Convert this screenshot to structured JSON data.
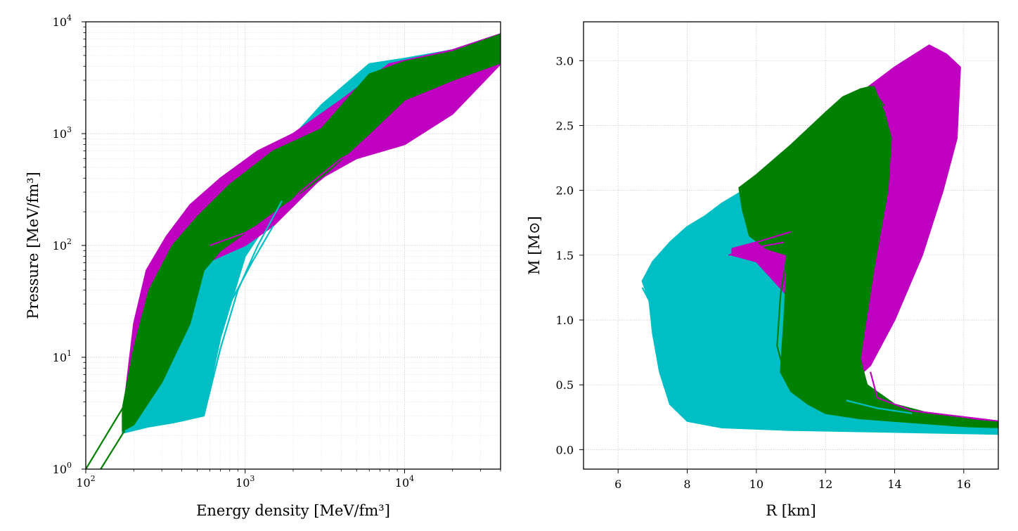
{
  "chart_data": [
    {
      "type": "line",
      "title": "",
      "xlabel": "Energy density [MeV/fm³]",
      "ylabel": "Pressure [MeV/fm³]",
      "xscale": "log",
      "yscale": "log",
      "xlim": [
        100,
        40000
      ],
      "ylim": [
        1,
        10000
      ],
      "x_ticks": [
        {
          "value": 100,
          "exp": "2"
        },
        {
          "value": 1000,
          "exp": "3"
        },
        {
          "value": 10000,
          "exp": "4"
        }
      ],
      "y_ticks": [
        {
          "value": 1,
          "exp": "0"
        },
        {
          "value": 10,
          "exp": "1"
        },
        {
          "value": 100,
          "exp": "2"
        },
        {
          "value": 1000,
          "exp": "3"
        },
        {
          "value": 10000,
          "exp": "4"
        }
      ],
      "tick_base": "10",
      "grid": "major and minor, dotted",
      "colors": {
        "cyan": "#00bfc4",
        "magenta": "#c000c0",
        "green": "#008000"
      },
      "bands": [
        {
          "color": "cyan",
          "upper": [
            [
              170,
              2.2
            ],
            [
              190,
              5
            ],
            [
              230,
              14
            ],
            [
              300,
              40
            ],
            [
              420,
              80
            ],
            [
              600,
              130
            ],
            [
              900,
              250
            ],
            [
              1500,
              600
            ],
            [
              3000,
              1800
            ],
            [
              6000,
              4200
            ],
            [
              10000,
              4700
            ],
            [
              20000,
              5600
            ],
            [
              40000,
              7800
            ]
          ],
          "lower": [
            [
              170,
              2.1
            ],
            [
              250,
              2.4
            ],
            [
              400,
              2.7
            ],
            [
              550,
              3.0
            ],
            [
              700,
              15
            ],
            [
              1000,
              80
            ],
            [
              1700,
              250
            ],
            [
              3000,
              550
            ],
            [
              6000,
              900
            ],
            [
              10000,
              1300
            ],
            [
              20000,
              2700
            ],
            [
              40000,
              4200
            ]
          ]
        },
        {
          "color": "magenta",
          "upper": [
            [
              175,
              4
            ],
            [
              200,
              20
            ],
            [
              240,
              60
            ],
            [
              320,
              120
            ],
            [
              450,
              230
            ],
            [
              700,
              400
            ],
            [
              1200,
              700
            ],
            [
              2000,
              1000
            ],
            [
              4000,
              2000
            ],
            [
              8000,
              4200
            ],
            [
              20000,
              5600
            ],
            [
              40000,
              7800
            ]
          ],
          "lower": [
            [
              175,
              3.5
            ],
            [
              220,
              8
            ],
            [
              300,
              25
            ],
            [
              450,
              60
            ],
            [
              700,
              80
            ],
            [
              1000,
              100
            ],
            [
              1500,
              150
            ],
            [
              3000,
              400
            ],
            [
              5000,
              600
            ],
            [
              10000,
              800
            ],
            [
              20000,
              1500
            ],
            [
              40000,
              4200
            ]
          ]
        },
        {
          "color": "green",
          "upper": [
            [
              170,
              3.5
            ],
            [
              200,
              12
            ],
            [
              250,
              40
            ],
            [
              350,
              100
            ],
            [
              500,
              180
            ],
            [
              800,
              350
            ],
            [
              1500,
              700
            ],
            [
              3000,
              1100
            ],
            [
              6000,
              3400
            ],
            [
              10000,
              4400
            ],
            [
              20000,
              5400
            ],
            [
              40000,
              7700
            ]
          ],
          "lower": [
            [
              170,
              2.2
            ],
            [
              200,
              2.5
            ],
            [
              300,
              6
            ],
            [
              450,
              20
            ],
            [
              550,
              60
            ],
            [
              700,
              90
            ],
            [
              1000,
              130
            ],
            [
              1500,
              200
            ],
            [
              3000,
              400
            ],
            [
              6000,
              1000
            ],
            [
              10000,
              2000
            ],
            [
              20000,
              3000
            ],
            [
              40000,
              4300
            ]
          ]
        }
      ],
      "lines": [
        {
          "color": "green",
          "points": [
            [
              100,
              1
            ],
            [
              170,
              3.5
            ]
          ]
        },
        {
          "color": "green",
          "points": [
            [
              124,
              1
            ],
            [
              175,
              2.2
            ]
          ]
        },
        {
          "color": "magenta",
          "points": [
            [
              600,
              100
            ],
            [
              1000,
              130
            ],
            [
              1700,
              200
            ],
            [
              2200,
              300
            ],
            [
              4000,
              600
            ],
            [
              6000,
              800
            ],
            [
              10000,
              1100
            ],
            [
              15000,
              1500
            ],
            [
              20000,
              2800
            ]
          ]
        },
        {
          "color": "magenta",
          "points": [
            [
              1000,
              120
            ],
            [
              1500,
              170
            ],
            [
              2500,
              320
            ],
            [
              5000,
              700
            ],
            [
              7000,
              900
            ],
            [
              10000,
              1300
            ],
            [
              18000,
              2400
            ]
          ]
        },
        {
          "color": "cyan",
          "points": [
            [
              250,
              2.4
            ],
            [
              350,
              2.6
            ],
            [
              550,
              3.0
            ],
            [
              700,
              12
            ],
            [
              900,
              40
            ],
            [
              1200,
              100
            ],
            [
              1700,
              250
            ]
          ]
        },
        {
          "color": "cyan",
          "points": [
            [
              220,
              2.3
            ],
            [
              400,
              3.6
            ],
            [
              600,
              8
            ],
            [
              800,
              30
            ],
            [
              1100,
              70
            ],
            [
              1500,
              150
            ]
          ]
        }
      ]
    },
    {
      "type": "line",
      "title": "",
      "xlabel": "R [km]",
      "ylabel": "M [M⊙]",
      "xlim": [
        5,
        17
      ],
      "ylim": [
        -0.15,
        3.3
      ],
      "x_ticks": [
        "6",
        "8",
        "10",
        "12",
        "14",
        "16"
      ],
      "y_ticks": [
        "0.0",
        "0.5",
        "1.0",
        "1.5",
        "2.0",
        "2.5",
        "3.0"
      ],
      "grid": "major, dotted",
      "colors": {
        "cyan": "#00bfc4",
        "magenta": "#c000c0",
        "green": "#008000"
      },
      "bands": [
        {
          "color": "cyan",
          "polygon": [
            [
              6.7,
              1.3
            ],
            [
              7.0,
              1.45
            ],
            [
              7.5,
              1.6
            ],
            [
              8.0,
              1.72
            ],
            [
              8.5,
              1.8
            ],
            [
              9.0,
              1.9
            ],
            [
              9.5,
              1.98
            ],
            [
              10.0,
              2.02
            ],
            [
              10.5,
              1.9
            ],
            [
              11.0,
              1.8
            ],
            [
              11.5,
              1.6
            ],
            [
              12.5,
              0.4
            ],
            [
              13.5,
              0.3
            ],
            [
              15.0,
              0.22
            ],
            [
              17.0,
              0.18
            ],
            [
              17.0,
              0.12
            ],
            [
              15.0,
              0.13
            ],
            [
              13.0,
              0.14
            ],
            [
              11.0,
              0.15
            ],
            [
              9.0,
              0.17
            ],
            [
              8.0,
              0.22
            ],
            [
              7.5,
              0.35
            ],
            [
              7.2,
              0.6
            ],
            [
              7.0,
              0.9
            ],
            [
              6.9,
              1.15
            ]
          ]
        },
        {
          "color": "magenta",
          "polygon": [
            [
              9.3,
              1.55
            ],
            [
              10.0,
              1.6
            ],
            [
              11.0,
              1.7
            ],
            [
              12.0,
              2.3
            ],
            [
              13.0,
              2.75
            ],
            [
              14.0,
              2.95
            ],
            [
              15.0,
              3.12
            ],
            [
              15.5,
              3.05
            ],
            [
              15.9,
              2.95
            ],
            [
              15.8,
              2.4
            ],
            [
              15.4,
              2.0
            ],
            [
              14.8,
              1.5
            ],
            [
              14.0,
              1.0
            ],
            [
              13.3,
              0.65
            ],
            [
              13.1,
              0.6
            ],
            [
              13.3,
              0.4
            ],
            [
              14.0,
              0.3
            ],
            [
              15.0,
              0.26
            ],
            [
              17.0,
              0.22
            ],
            [
              17.0,
              0.2
            ],
            [
              15.0,
              0.22
            ],
            [
              13.0,
              0.26
            ],
            [
              12.0,
              0.3
            ],
            [
              11.2,
              1.1
            ],
            [
              10.0,
              1.45
            ],
            [
              9.3,
              1.5
            ]
          ]
        },
        {
          "color": "green",
          "polygon": [
            [
              9.5,
              2.02
            ],
            [
              10.0,
              2.12
            ],
            [
              11.0,
              2.35
            ],
            [
              12.0,
              2.6
            ],
            [
              12.5,
              2.72
            ],
            [
              13.0,
              2.78
            ],
            [
              13.4,
              2.8
            ],
            [
              13.7,
              2.6
            ],
            [
              13.9,
              2.4
            ],
            [
              13.8,
              2.0
            ],
            [
              13.4,
              1.4
            ],
            [
              13.0,
              0.7
            ],
            [
              13.2,
              0.5
            ],
            [
              14.0,
              0.35
            ],
            [
              15.0,
              0.28
            ],
            [
              17.0,
              0.2
            ],
            [
              17.0,
              0.16
            ],
            [
              15.0,
              0.2
            ],
            [
              13.0,
              0.24
            ],
            [
              12.0,
              0.28
            ],
            [
              11.5,
              0.35
            ],
            [
              11.0,
              0.45
            ],
            [
              10.7,
              0.6
            ],
            [
              10.8,
              1.0
            ],
            [
              10.9,
              1.5
            ],
            [
              10.3,
              1.55
            ],
            [
              9.8,
              1.65
            ],
            [
              9.6,
              1.85
            ]
          ]
        }
      ],
      "lines": [
        {
          "color": "cyan",
          "points": [
            [
              6.7,
              1.25
            ],
            [
              6.9,
              1.15
            ],
            [
              7.0,
              0.95
            ],
            [
              7.2,
              0.7
            ],
            [
              7.5,
              0.45
            ],
            [
              8.0,
              0.3
            ],
            [
              9.0,
              0.22
            ],
            [
              11.0,
              0.18
            ],
            [
              14.0,
              0.15
            ],
            [
              17.0,
              0.14
            ]
          ]
        },
        {
          "color": "cyan",
          "points": [
            [
              7.0,
              1.2
            ],
            [
              7.3,
              1.0
            ],
            [
              7.6,
              0.7
            ],
            [
              8.1,
              0.42
            ],
            [
              9.0,
              0.28
            ],
            [
              11.0,
              0.21
            ],
            [
              17.0,
              0.16
            ]
          ]
        },
        {
          "color": "magenta",
          "points": [
            [
              9.3,
              1.55
            ],
            [
              10.0,
              1.6
            ],
            [
              11.0,
              1.68
            ]
          ]
        },
        {
          "color": "magenta",
          "points": [
            [
              9.2,
              1.5
            ],
            [
              10.0,
              1.56
            ],
            [
              10.8,
              1.6
            ]
          ]
        },
        {
          "color": "magenta",
          "points": [
            [
              13.3,
              0.6
            ],
            [
              13.5,
              0.4
            ],
            [
              14.5,
              0.3
            ],
            [
              17.0,
              0.22
            ]
          ]
        },
        {
          "color": "green",
          "points": [
            [
              10.9,
              1.52
            ],
            [
              10.7,
              1.2
            ],
            [
              10.6,
              0.8
            ],
            [
              10.9,
              0.5
            ],
            [
              11.6,
              0.35
            ],
            [
              12.5,
              0.28
            ],
            [
              14.0,
              0.24
            ],
            [
              17.0,
              0.2
            ]
          ]
        },
        {
          "color": "green",
          "points": [
            [
              11.2,
              1.4
            ],
            [
              10.9,
              1.0
            ],
            [
              11.0,
              0.6
            ],
            [
              11.8,
              0.38
            ],
            [
              13.0,
              0.3
            ],
            [
              17.0,
              0.21
            ]
          ]
        },
        {
          "color": "green",
          "points": [
            [
              12.3,
              2.6
            ],
            [
              12.7,
              2.7
            ],
            [
              13.0,
              2.78
            ],
            [
              13.3,
              2.8
            ],
            [
              13.7,
              2.65
            ]
          ]
        },
        {
          "color": "green",
          "points": [
            [
              9.5,
              2.02
            ],
            [
              9.7,
              2.05
            ],
            [
              10.0,
              2.1
            ],
            [
              10.3,
              2.14
            ]
          ]
        },
        {
          "color": "cyan",
          "points": [
            [
              12.6,
              0.38
            ],
            [
              13.5,
              0.32
            ],
            [
              14.5,
              0.28
            ]
          ]
        }
      ]
    }
  ]
}
